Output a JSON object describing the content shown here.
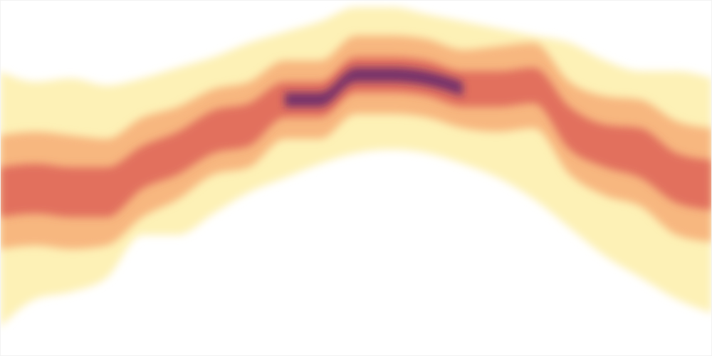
{
  "chart_data": {
    "type": "area",
    "x": [
      0,
      1,
      2,
      3,
      4,
      5,
      6,
      7,
      8,
      9,
      10,
      11,
      12,
      13,
      14,
      15,
      16,
      17,
      18,
      19,
      20
    ],
    "xlim": [
      0,
      20
    ],
    "ylim": [
      0,
      100
    ],
    "tick_labels": false,
    "series": [
      {
        "color": "#fdf0ae",
        "lower": [
          8,
          16,
          18,
          22,
          34,
          34,
          40,
          46,
          50,
          54,
          57,
          58,
          57,
          54,
          50,
          44,
          36,
          28,
          22,
          16,
          12
        ],
        "upper": [
          80,
          77,
          78,
          76,
          78,
          81,
          84,
          88,
          91,
          94,
          98,
          98,
          96,
          94,
          92,
          90,
          88,
          83,
          80,
          80,
          78
        ]
      },
      {
        "color": "#f6a36d",
        "lower": [
          30,
          31,
          30,
          31,
          39,
          44,
          51,
          53,
          61,
          61,
          68,
          68,
          67,
          64,
          63,
          64,
          51,
          45,
          42,
          34,
          32
        ],
        "upper": [
          62,
          63,
          62,
          61,
          67,
          70,
          75,
          77,
          83,
          83,
          90,
          90,
          89,
          86,
          87,
          88,
          77,
          73,
          72,
          66,
          64
        ]
      },
      {
        "color": "#d9534f",
        "lower": [
          39,
          40,
          39,
          39,
          47,
          51,
          57,
          59,
          67,
          67,
          74,
          74,
          73,
          70,
          70,
          71,
          58,
          53,
          50,
          43,
          41
        ],
        "upper": [
          53,
          54,
          53,
          53,
          59,
          63,
          69,
          71,
          77,
          77,
          84,
          84,
          83,
          80,
          80,
          81,
          70,
          65,
          64,
          57,
          55
        ]
      },
      {
        "color": "#5a1f6e",
        "lower": [
          null,
          null,
          null,
          null,
          null,
          null,
          null,
          null,
          70,
          70,
          77,
          77,
          76,
          73,
          null,
          null,
          null,
          null,
          null,
          null,
          null
        ],
        "upper": [
          null,
          null,
          null,
          null,
          null,
          null,
          null,
          null,
          74,
          74,
          81,
          81,
          80,
          77,
          null,
          null,
          null,
          null,
          null,
          null,
          null
        ]
      }
    ]
  }
}
